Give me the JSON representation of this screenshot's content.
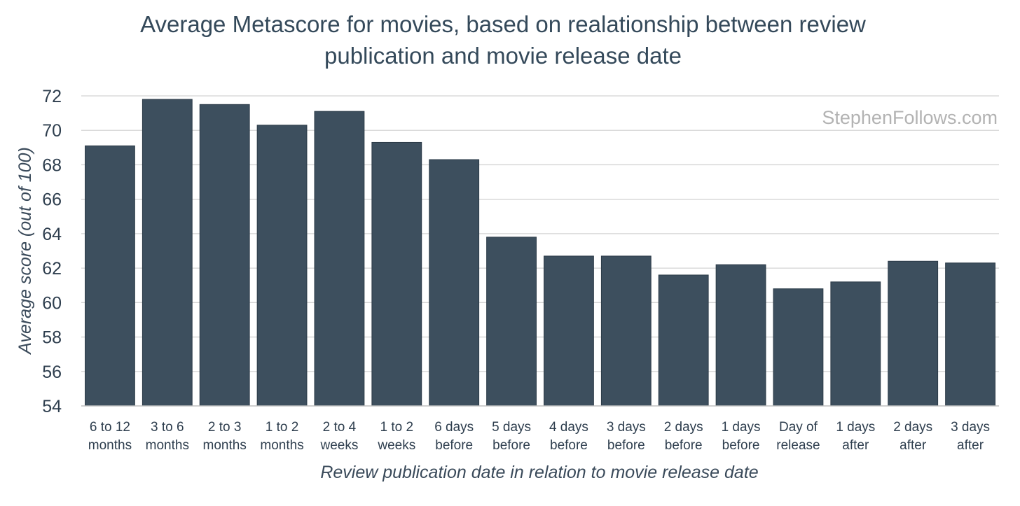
{
  "chart_data": {
    "type": "bar",
    "title": [
      "Average Metascore for movies, based on realationship between review",
      "publication and movie release date"
    ],
    "xlabel": "Review publication date in relation to movie release date",
    "ylabel": "Average score (out of 100)",
    "ylim": [
      54,
      72
    ],
    "yticks": [
      54,
      56,
      58,
      60,
      62,
      64,
      66,
      68,
      70,
      72
    ],
    "grid": true,
    "watermark": "StephenFollows.com",
    "bar_color": "#3d4f5e",
    "categories": [
      [
        "6 to 12",
        "months"
      ],
      [
        "3 to 6",
        "months"
      ],
      [
        "2 to 3",
        "months"
      ],
      [
        "1 to 2",
        "months"
      ],
      [
        "2 to 4",
        "weeks"
      ],
      [
        "1 to 2",
        "weeks"
      ],
      [
        "6 days",
        "before"
      ],
      [
        "5 days",
        "before"
      ],
      [
        "4 days",
        "before"
      ],
      [
        "3 days",
        "before"
      ],
      [
        "2 days",
        "before"
      ],
      [
        "1 days",
        "before"
      ],
      [
        "Day of",
        "release"
      ],
      [
        "1 days",
        "after"
      ],
      [
        "2 days",
        "after"
      ],
      [
        "3 days",
        "after"
      ]
    ],
    "values": [
      69.1,
      71.8,
      71.5,
      70.3,
      71.1,
      69.3,
      68.3,
      63.8,
      62.7,
      62.7,
      61.6,
      62.2,
      60.8,
      61.2,
      62.4,
      62.3
    ]
  }
}
